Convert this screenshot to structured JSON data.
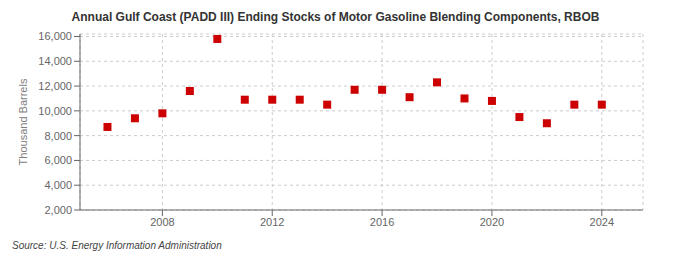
{
  "chart_data": {
    "type": "scatter",
    "title": "Annual Gulf Coast (PADD III) Ending Stocks of Motor Gasoline Blending Components, RBOB",
    "ylabel": "Thousand Barrels",
    "annotation": "Source: U.S. Energy Information Administration",
    "x": [
      2006,
      2007,
      2008,
      2009,
      2010,
      2011,
      2012,
      2013,
      2014,
      2015,
      2016,
      2017,
      2018,
      2019,
      2020,
      2021,
      2022,
      2023,
      2024
    ],
    "values": [
      8700,
      9400,
      9800,
      11600,
      15800,
      10900,
      10900,
      10900,
      10500,
      11700,
      11700,
      11100,
      12300,
      11000,
      10800,
      9500,
      9000,
      10500,
      10500
    ],
    "color": "#cc0000",
    "marker": "square",
    "xlim": [
      2005.0,
      2025.5
    ],
    "xticks": [
      2008,
      2012,
      2016,
      2020,
      2024
    ],
    "ylim": [
      2000,
      16200
    ],
    "yticks": [
      {
        "value": 2000,
        "label": "2,000"
      },
      {
        "value": 4000,
        "label": "4,000"
      },
      {
        "value": 6000,
        "label": "6,000"
      },
      {
        "value": 8000,
        "label": "8,000"
      },
      {
        "value": 10000,
        "label": "10,000"
      },
      {
        "value": 12000,
        "label": "12,000"
      },
      {
        "value": 14000,
        "label": "14,000"
      },
      {
        "value": 16000,
        "label": "16,000"
      }
    ],
    "grid": true
  }
}
